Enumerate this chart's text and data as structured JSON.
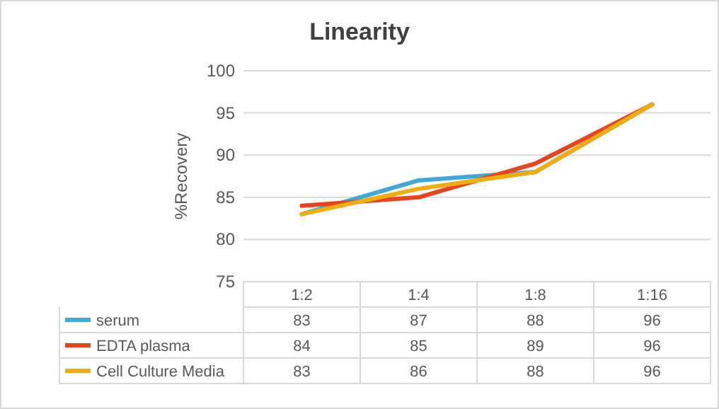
{
  "chart_data": {
    "type": "line",
    "title": "Linearity",
    "ylabel": "%Recovery",
    "categories": [
      "1:2",
      "1:4",
      "1:8",
      "1:16"
    ],
    "series": [
      {
        "name": "serum",
        "color": "#3fa7d9",
        "values": [
          83,
          87,
          88,
          96
        ]
      },
      {
        "name": "EDTA plasma",
        "color": "#e8441f",
        "values": [
          84,
          85,
          89,
          96
        ]
      },
      {
        "name": "Cell Culture Media",
        "color": "#f2ad0c",
        "values": [
          83,
          86,
          88,
          96
        ]
      }
    ],
    "ylim": [
      75,
      100
    ],
    "yticks": [
      75,
      80,
      85,
      90,
      95,
      100
    ],
    "grid": "y",
    "legend": "bottom",
    "data_labels": true,
    "marker": "none",
    "line_style": "solid"
  }
}
